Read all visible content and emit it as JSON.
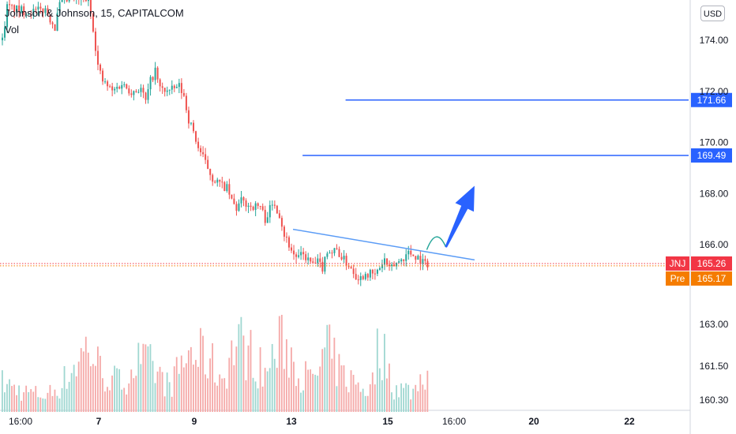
{
  "header": {
    "title": "Johnson & Johnson, 15, CAPITALCOM",
    "volume_label": "Vol",
    "currency": "USD"
  },
  "colors": {
    "up": "#26a69a",
    "down": "#ef5350",
    "volume_up": "#9fd7d1",
    "volume_down": "#f5a9a8",
    "drawing_line": "#2962ff",
    "trendline": "#5b9cf6",
    "arrow": "#2962ff",
    "curve": "#26a69a",
    "last_price": "#f23645",
    "pre_market": "#f57c00",
    "axis_text": "#131722",
    "axis_border": "#d1d4dc"
  },
  "chart_data": {
    "type": "candlestick",
    "symbol": "JNJ",
    "interval": "15",
    "exchange": "CAPITALCOM",
    "y_axis_ticks": [
      "174.00",
      "172.00",
      "170.00",
      "168.00",
      "166.00",
      "163.00",
      "161.50",
      "160.30"
    ],
    "x_axis_ticks": [
      {
        "label": "16:00",
        "bold": false
      },
      {
        "label": "7",
        "bold": true
      },
      {
        "label": "9",
        "bold": true
      },
      {
        "label": "13",
        "bold": true
      },
      {
        "label": "15",
        "bold": true
      },
      {
        "label": "16:00",
        "bold": false
      },
      {
        "label": "20",
        "bold": true
      },
      {
        "label": "22",
        "bold": true
      }
    ],
    "close_path": [
      [
        0,
        174.0
      ],
      [
        1,
        175.3
      ],
      [
        3,
        175.2
      ],
      [
        6,
        175.1
      ],
      [
        9,
        175.2
      ],
      [
        11,
        174.5
      ],
      [
        12,
        175.4
      ],
      [
        14,
        175.6
      ],
      [
        18,
        175.6
      ],
      [
        19,
        174.5
      ],
      [
        20,
        173.0
      ],
      [
        21,
        172.4
      ],
      [
        23,
        172.0
      ],
      [
        25,
        172.3
      ],
      [
        27,
        172.0
      ],
      [
        29,
        172.1
      ],
      [
        30,
        171.6
      ],
      [
        31,
        172.4
      ],
      [
        32,
        172.8
      ],
      [
        33,
        172.1
      ],
      [
        35,
        172.0
      ],
      [
        37,
        172.2
      ],
      [
        38,
        171.8
      ],
      [
        39,
        170.9
      ],
      [
        40,
        170.4
      ],
      [
        41,
        169.8
      ],
      [
        43,
        169.0
      ],
      [
        44,
        168.6
      ],
      [
        46,
        168.3
      ],
      [
        47,
        168.2
      ],
      [
        48,
        167.7
      ],
      [
        49,
        167.4
      ],
      [
        50,
        167.7
      ],
      [
        52,
        167.5
      ],
      [
        54,
        167.5
      ],
      [
        55,
        167.0
      ],
      [
        56,
        167.4
      ],
      [
        57,
        167.6
      ],
      [
        58,
        167.2
      ],
      [
        59,
        166.4
      ],
      [
        60,
        166.0
      ],
      [
        61,
        165.6
      ],
      [
        62,
        165.5
      ],
      [
        63,
        165.6
      ],
      [
        64,
        165.4
      ],
      [
        65,
        165.2
      ],
      [
        66,
        165.3
      ],
      [
        67,
        165.1
      ],
      [
        68,
        165.8
      ],
      [
        69,
        165.7
      ],
      [
        70,
        165.8
      ],
      [
        71,
        165.5
      ],
      [
        72,
        165.3
      ],
      [
        73,
        165.1
      ],
      [
        74,
        164.8
      ],
      [
        75,
        164.7
      ],
      [
        76,
        164.9
      ],
      [
        78,
        164.8
      ],
      [
        79,
        165.1
      ],
      [
        80,
        165.4
      ],
      [
        81,
        165.0
      ],
      [
        82,
        165.2
      ],
      [
        84,
        165.5
      ],
      [
        85,
        165.7
      ],
      [
        87,
        165.5
      ],
      [
        88,
        165.3
      ],
      [
        89,
        165.26
      ]
    ],
    "volume_profile": [
      [
        0,
        0.35
      ],
      [
        4,
        0.25
      ],
      [
        9,
        0.2
      ],
      [
        12,
        0.3
      ],
      [
        18,
        0.8
      ],
      [
        21,
        0.45
      ],
      [
        25,
        0.35
      ],
      [
        28,
        0.6
      ],
      [
        31,
        0.55
      ],
      [
        35,
        0.3
      ],
      [
        39,
        0.7
      ],
      [
        43,
        0.65
      ],
      [
        46,
        0.4
      ],
      [
        49,
        0.85
      ],
      [
        52,
        0.7
      ],
      [
        55,
        0.45
      ],
      [
        57,
        0.7
      ],
      [
        59,
        0.85
      ],
      [
        62,
        0.5
      ],
      [
        65,
        0.35
      ],
      [
        68,
        0.75
      ],
      [
        71,
        0.45
      ],
      [
        74,
        0.35
      ],
      [
        77,
        0.25
      ],
      [
        79,
        0.85
      ],
      [
        82,
        0.3
      ],
      [
        86,
        0.25
      ],
      [
        89,
        0.55
      ]
    ],
    "horizontal_levels": [
      {
        "price": 171.66,
        "label": "171.66",
        "x_start": 72
      },
      {
        "price": 169.49,
        "label": "169.49",
        "x_start": 63
      }
    ],
    "trendline": {
      "from": [
        61,
        166.6
      ],
      "to": [
        99,
        165.4
      ]
    },
    "projection_curve": [
      [
        89,
        165.8
      ],
      [
        91,
        166.2
      ],
      [
        93,
        165.9
      ]
    ],
    "arrow": {
      "from": [
        93,
        165.9
      ],
      "to": [
        99,
        168.3
      ]
    },
    "last_price": {
      "label": "JNJ",
      "value": "165.26",
      "price": 165.26
    },
    "pre_market": {
      "label": "Pre",
      "value": "165.17",
      "price": 165.17
    }
  }
}
